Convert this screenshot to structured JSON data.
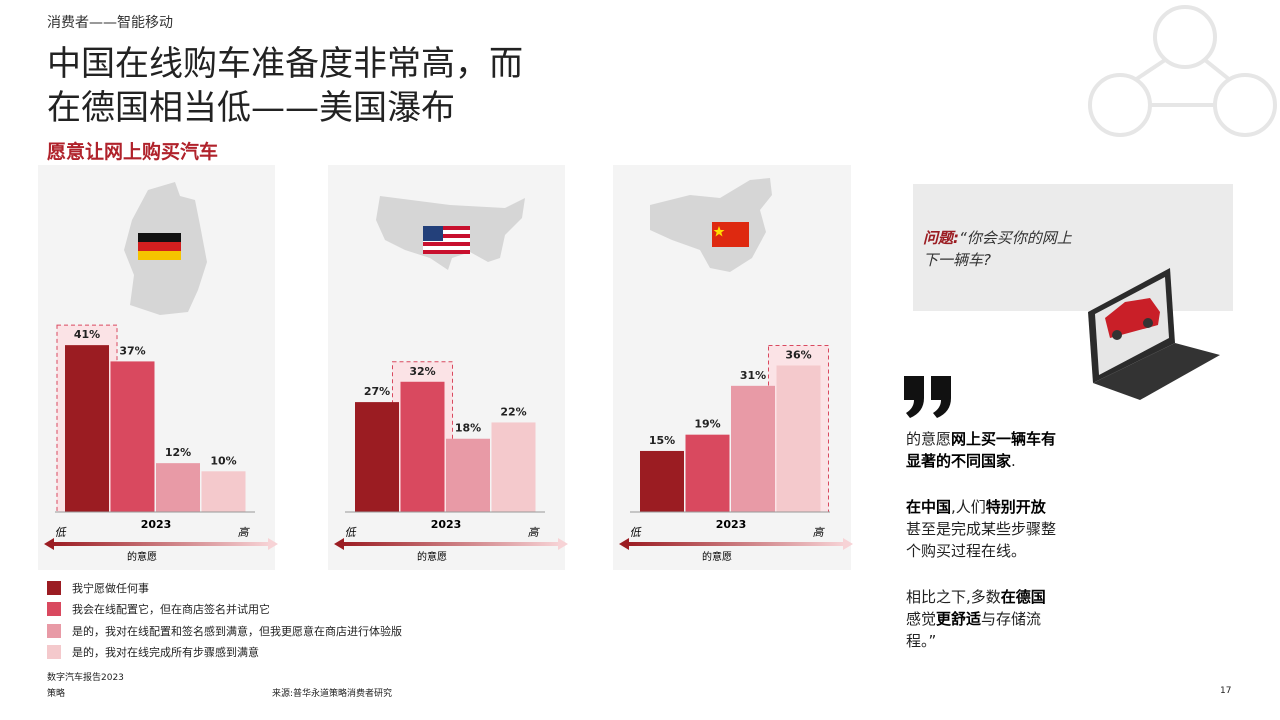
{
  "header": {
    "section": "消费者——智能移动",
    "title_lines": [
      "中国在线购车准备度非常高，而",
      "在德国相当低——美国瀑布"
    ],
    "subtitle": "愿意让网上购买汽车"
  },
  "legend": [
    {
      "name": "我宁愿做任何事",
      "color": "#9b1c22"
    },
    {
      "name": "我会在线配置它，但在商店签名并试用它",
      "color": "#d9495f"
    },
    {
      "name": "是的，我对在线配置和签名感到满意，但我更愿意在商店进行体验版",
      "color": "#e89aa6"
    },
    {
      "name": "是的，我对在线完成所有步骤感到满意",
      "color": "#f4c9cc"
    }
  ],
  "chart_data": [
    {
      "type": "bar",
      "values": [
        41,
        37,
        12,
        10
      ],
      "value_labels": [
        "41%",
        "37%",
        "12%",
        "10%"
      ],
      "highlight": 0,
      "x_label": "2023",
      "low": "低",
      "high": "高",
      "axis_label": "的意愿"
    },
    {
      "type": "bar",
      "values": [
        27,
        32,
        18,
        22
      ],
      "value_labels": [
        "27%",
        "32%",
        "18%",
        "22%"
      ],
      "highlight": 1,
      "x_label": "2023",
      "low": "低",
      "high": "高",
      "axis_label": "的意愿"
    },
    {
      "type": "bar",
      "values": [
        15,
        19,
        31,
        36
      ],
      "value_labels": [
        "15%",
        "19%",
        "31%",
        "36%"
      ],
      "highlight": 3,
      "x_label": "2023",
      "low": "低",
      "high": "高",
      "axis_label": "的意愿"
    }
  ],
  "question": {
    "label": "问题:",
    "text": "“你会买你的网上下一辆车?"
  },
  "quote": [
    [
      {
        "text": "的意愿",
        "bold": false
      },
      {
        "text": "网上买一辆车有显著的不同国家",
        "bold": true
      },
      {
        "text": ".",
        "bold": false
      }
    ],
    [
      {
        "text": "在中国",
        "bold": true
      },
      {
        "text": ",人们",
        "bold": false
      },
      {
        "text": "特别开放",
        "bold": true
      },
      {
        "text": "甚至是完成某些步骤整个购买过程在线。",
        "bold": false
      }
    ],
    [
      {
        "text": "相比之下,多数",
        "bold": false
      },
      {
        "text": "在德国",
        "bold": true
      },
      {
        "text": "感觉",
        "bold": false
      },
      {
        "text": "更舒适",
        "bold": true
      },
      {
        "text": "与存储流程。”",
        "bold": false
      }
    ]
  ],
  "footer": {
    "report": "数字汽车报告2023",
    "section": "策略",
    "source": "来源:普华永道策略消费者研究",
    "page": "17"
  }
}
